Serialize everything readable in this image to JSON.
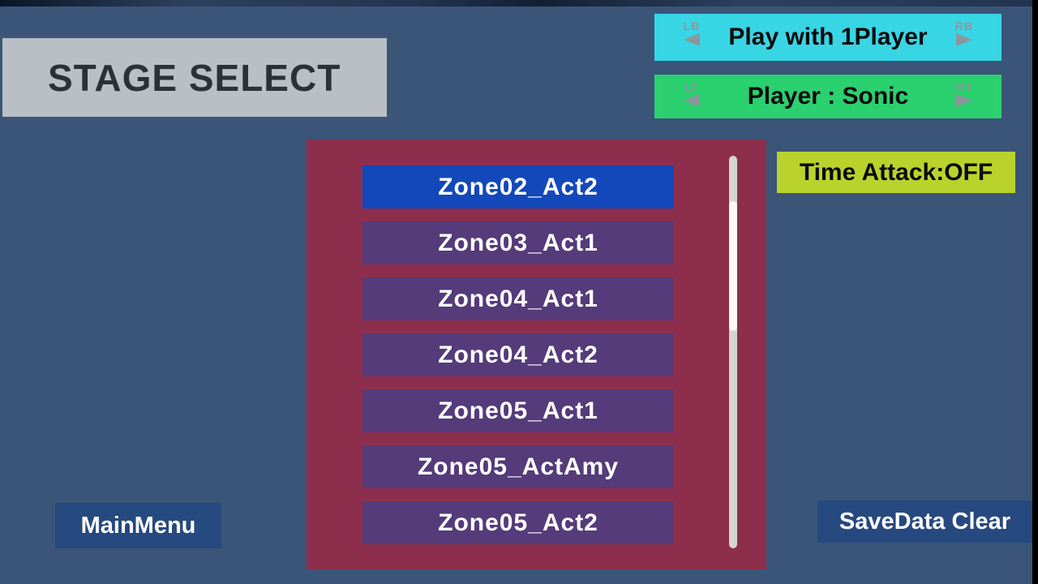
{
  "title": "STAGE SELECT",
  "controls": {
    "play_mode": {
      "label": "Play with 1Player",
      "left_hint": "LB",
      "right_hint": "RB"
    },
    "player": {
      "label": "Player : Sonic",
      "left_hint": "LT",
      "right_hint": "RT"
    },
    "time_attack": {
      "label": "Time Attack:OFF"
    }
  },
  "stage_list": {
    "items": [
      {
        "label": "Zone02_Act2",
        "selected": true
      },
      {
        "label": "Zone03_Act1",
        "selected": false
      },
      {
        "label": "Zone04_Act1",
        "selected": false
      },
      {
        "label": "Zone04_Act2",
        "selected": false
      },
      {
        "label": "Zone05_Act1",
        "selected": false
      },
      {
        "label": "Zone05_ActAmy",
        "selected": false
      },
      {
        "label": "Zone05_Act2",
        "selected": false
      }
    ]
  },
  "footer": {
    "main_menu_label": "MainMenu",
    "save_data_clear_label": "SaveData Clear"
  },
  "colors": {
    "bg": "#3a5577",
    "title_box": "#b9bfc4",
    "title_text": "#2c3136",
    "cyan": "#38d5e5",
    "green": "#2bd06f",
    "yellow": "#b9d32c",
    "hint": "#8b969c",
    "panel": "#8e2e4d",
    "item": "#553b79",
    "item_selected": "#1348bb",
    "scroll_track": "#d7d4d1",
    "scroll_thumb": "#fdfaf7",
    "footer_btn": "#26497f"
  }
}
